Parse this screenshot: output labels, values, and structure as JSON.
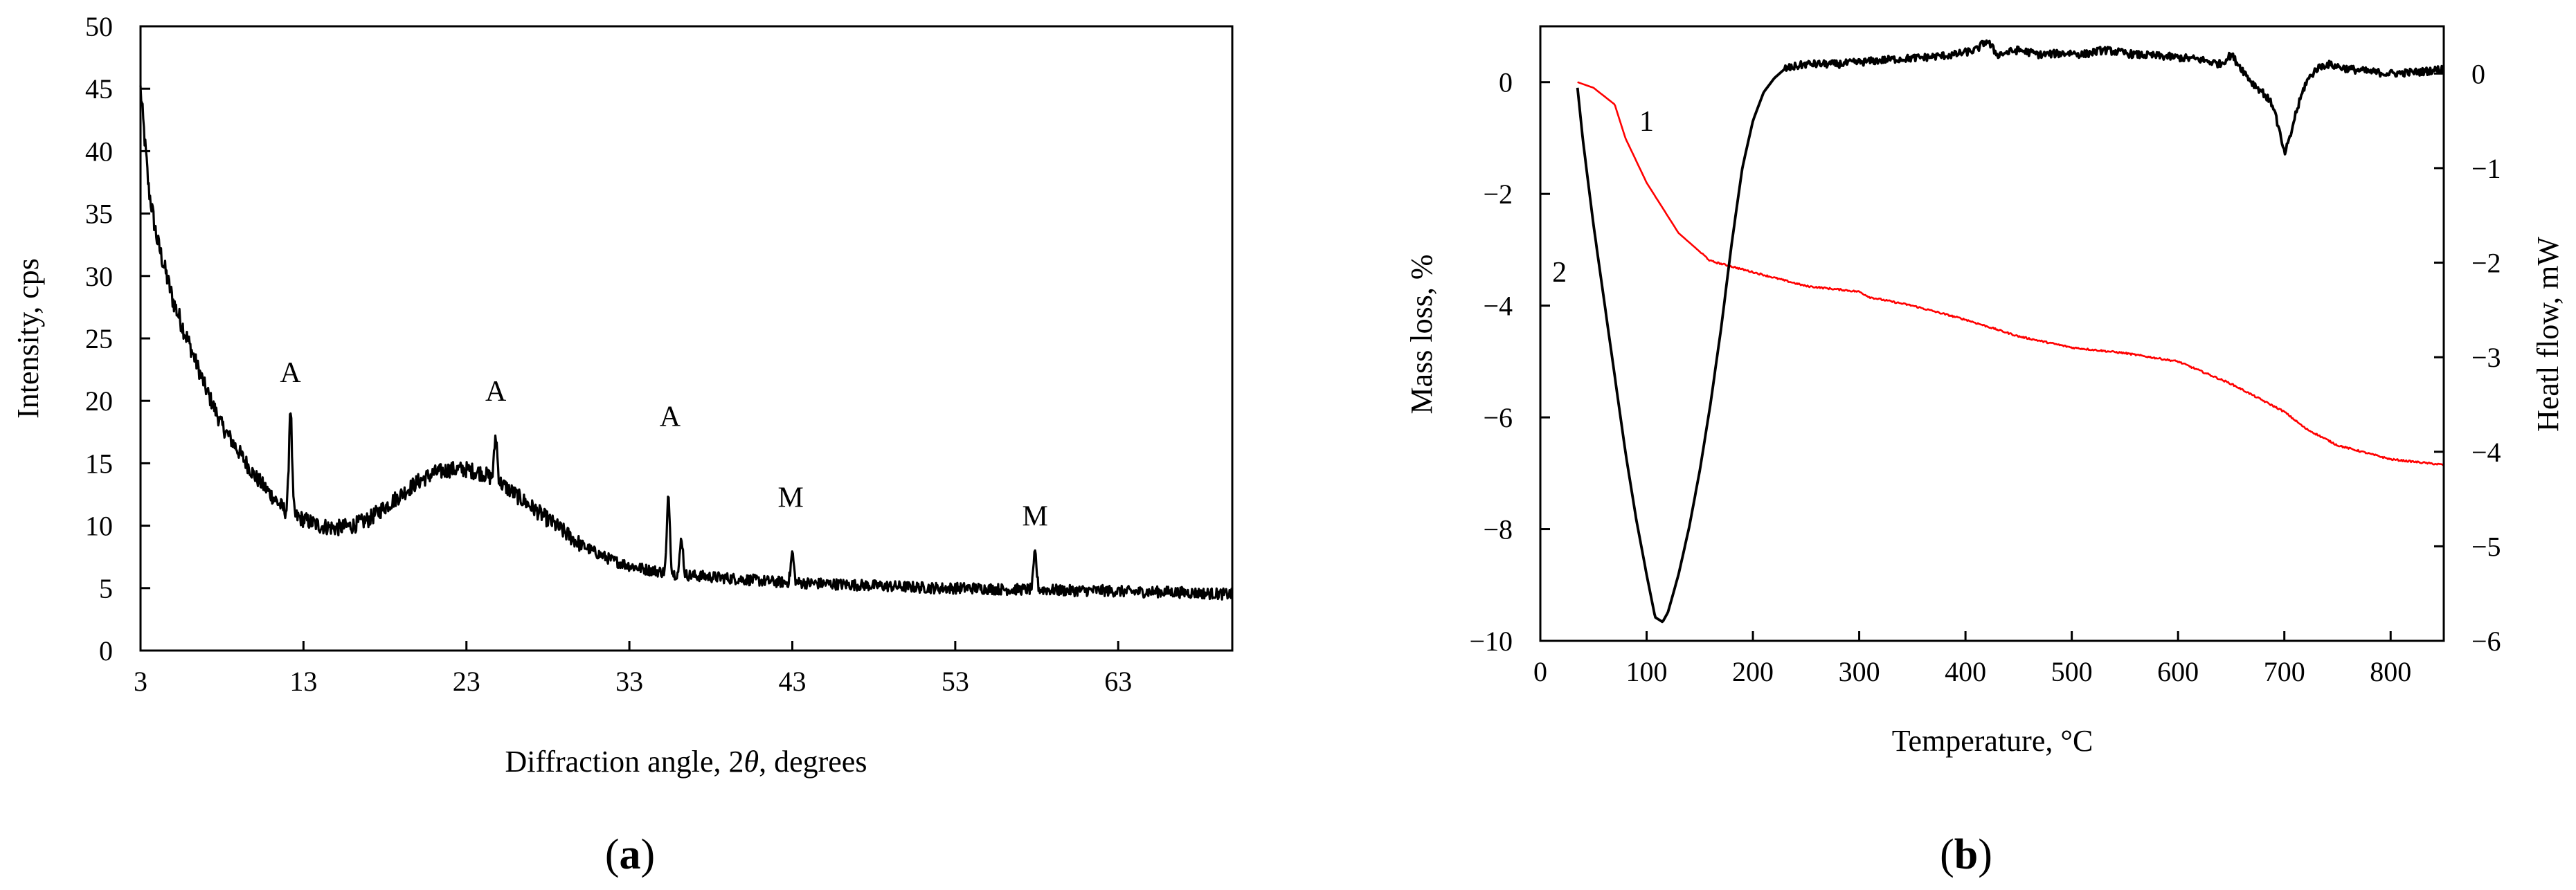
{
  "chart_data": [
    {
      "panel_label": "(a)",
      "type": "line",
      "xlabel_parts": [
        "Diffraction angle, 2",
        "θ",
        ", degrees"
      ],
      "ylabel": "Intensity, cps",
      "xlim": [
        3,
        70
      ],
      "ylim": [
        0,
        50
      ],
      "xticks": [
        3,
        13,
        23,
        33,
        43,
        53,
        63
      ],
      "yticks": [
        0,
        5,
        10,
        15,
        20,
        25,
        30,
        35,
        40,
        45,
        50
      ],
      "grid": false,
      "series": [
        {
          "color": "#000000",
          "baseline_x": [
            3,
            3.5,
            4,
            5,
            6,
            7,
            8,
            9,
            10,
            11,
            12,
            13,
            14,
            15,
            16,
            17,
            18,
            19,
            20,
            21,
            22,
            23,
            24,
            25,
            26,
            27,
            28,
            29,
            30,
            31,
            32,
            33,
            34,
            35,
            36,
            37,
            38,
            40,
            42,
            44,
            46,
            48,
            50,
            52,
            54,
            56,
            58,
            60,
            62,
            64,
            66,
            68,
            70
          ],
          "baseline_y": [
            45,
            37,
            33,
            28,
            24.5,
            21,
            18,
            16,
            14,
            12.5,
            11,
            10.5,
            10,
            9.8,
            10,
            10.5,
            11.5,
            12.5,
            13.5,
            14.2,
            14.5,
            14.5,
            14.2,
            13.5,
            12.5,
            11.5,
            10.5,
            9.5,
            8.5,
            7.8,
            7.2,
            6.8,
            6.5,
            6.3,
            6.1,
            6.0,
            5.9,
            5.7,
            5.5,
            5.4,
            5.3,
            5.2,
            5.1,
            5.0,
            5.0,
            4.9,
            4.9,
            4.8,
            4.8,
            4.7,
            4.7,
            4.6,
            4.5
          ],
          "peaks": [
            {
              "x": 12.2,
              "y": 19.5
            },
            {
              "x": 24.8,
              "y": 17.2
            },
            {
              "x": 35.4,
              "y": 12.3
            },
            {
              "x": 36.2,
              "y": 9.0
            },
            {
              "x": 43.0,
              "y": 7.8
            },
            {
              "x": 57.9,
              "y": 7.8
            }
          ]
        }
      ],
      "annotations": [
        {
          "text": "A",
          "x": 12.2,
          "y": 21.5
        },
        {
          "text": "A",
          "x": 24.8,
          "y": 20.0
        },
        {
          "text": "A",
          "x": 35.5,
          "y": 18.0
        },
        {
          "text": "M",
          "x": 42.9,
          "y": 11.5
        },
        {
          "text": "M",
          "x": 57.9,
          "y": 10.0
        }
      ]
    },
    {
      "panel_label": "(b)",
      "type": "line",
      "xlabel": "Temperature, °C",
      "ylabel_left": "Mass loss, %",
      "ylabel_right": "Heatl flow, mW",
      "xlim": [
        0,
        850
      ],
      "ylim_left": [
        -10,
        1
      ],
      "ylim_right": [
        -6,
        0.5
      ],
      "xticks": [
        0,
        100,
        200,
        300,
        400,
        500,
        600,
        700,
        800
      ],
      "yticks_left": [
        0,
        -2,
        -4,
        -6,
        -8,
        -10
      ],
      "yticks_right": [
        0,
        -1,
        -2,
        -3,
        -4,
        -5,
        -6
      ],
      "grid": false,
      "series": [
        {
          "name": "1",
          "axis": "left",
          "color": "#ff0000",
          "x": [
            35,
            50,
            70,
            80,
            100,
            130,
            160,
            200,
            250,
            300,
            310,
            350,
            400,
            450,
            500,
            550,
            600,
            650,
            700,
            720,
            750,
            800,
            850
          ],
          "y": [
            0,
            -0.1,
            -0.4,
            -1.0,
            -1.8,
            -2.7,
            -3.2,
            -3.4,
            -3.65,
            -3.75,
            -3.85,
            -4.0,
            -4.25,
            -4.55,
            -4.75,
            -4.85,
            -5.0,
            -5.4,
            -5.9,
            -6.2,
            -6.5,
            -6.75,
            -6.85
          ]
        },
        {
          "name": "2",
          "axis": "right",
          "color": "#000000",
          "x": [
            35,
            40,
            50,
            60,
            70,
            80,
            90,
            100,
            108,
            115,
            120,
            130,
            140,
            150,
            160,
            170,
            180,
            190,
            200,
            210,
            220,
            230,
            250,
            280,
            300,
            330,
            360,
            390,
            410,
            420,
            430,
            450,
            470,
            500,
            510,
            530,
            560,
            590,
            620,
            640,
            650,
            660,
            670,
            680,
            690,
            700,
            705,
            710,
            720,
            730,
            740,
            760,
            780,
            800,
            830,
            850
          ],
          "y": [
            -0.15,
            -0.7,
            -1.6,
            -2.4,
            -3.2,
            -4.0,
            -4.7,
            -5.3,
            -5.75,
            -5.8,
            -5.7,
            -5.3,
            -4.8,
            -4.2,
            -3.5,
            -2.7,
            -1.8,
            -1.0,
            -0.5,
            -0.2,
            -0.05,
            0.05,
            0.1,
            0.1,
            0.12,
            0.15,
            0.17,
            0.2,
            0.25,
            0.35,
            0.2,
            0.25,
            0.2,
            0.22,
            0.2,
            0.25,
            0.2,
            0.18,
            0.15,
            0.1,
            0.2,
            0.05,
            -0.1,
            -0.2,
            -0.35,
            -0.85,
            -0.7,
            -0.45,
            -0.1,
            0.05,
            0.1,
            0.05,
            0.02,
            0.0,
            0.02,
            0.05
          ]
        }
      ],
      "annotations": [
        {
          "text": "1",
          "x": 100,
          "y_left": -0.7
        },
        {
          "text": "2",
          "x": 18,
          "y_left": -3.4
        }
      ]
    }
  ]
}
